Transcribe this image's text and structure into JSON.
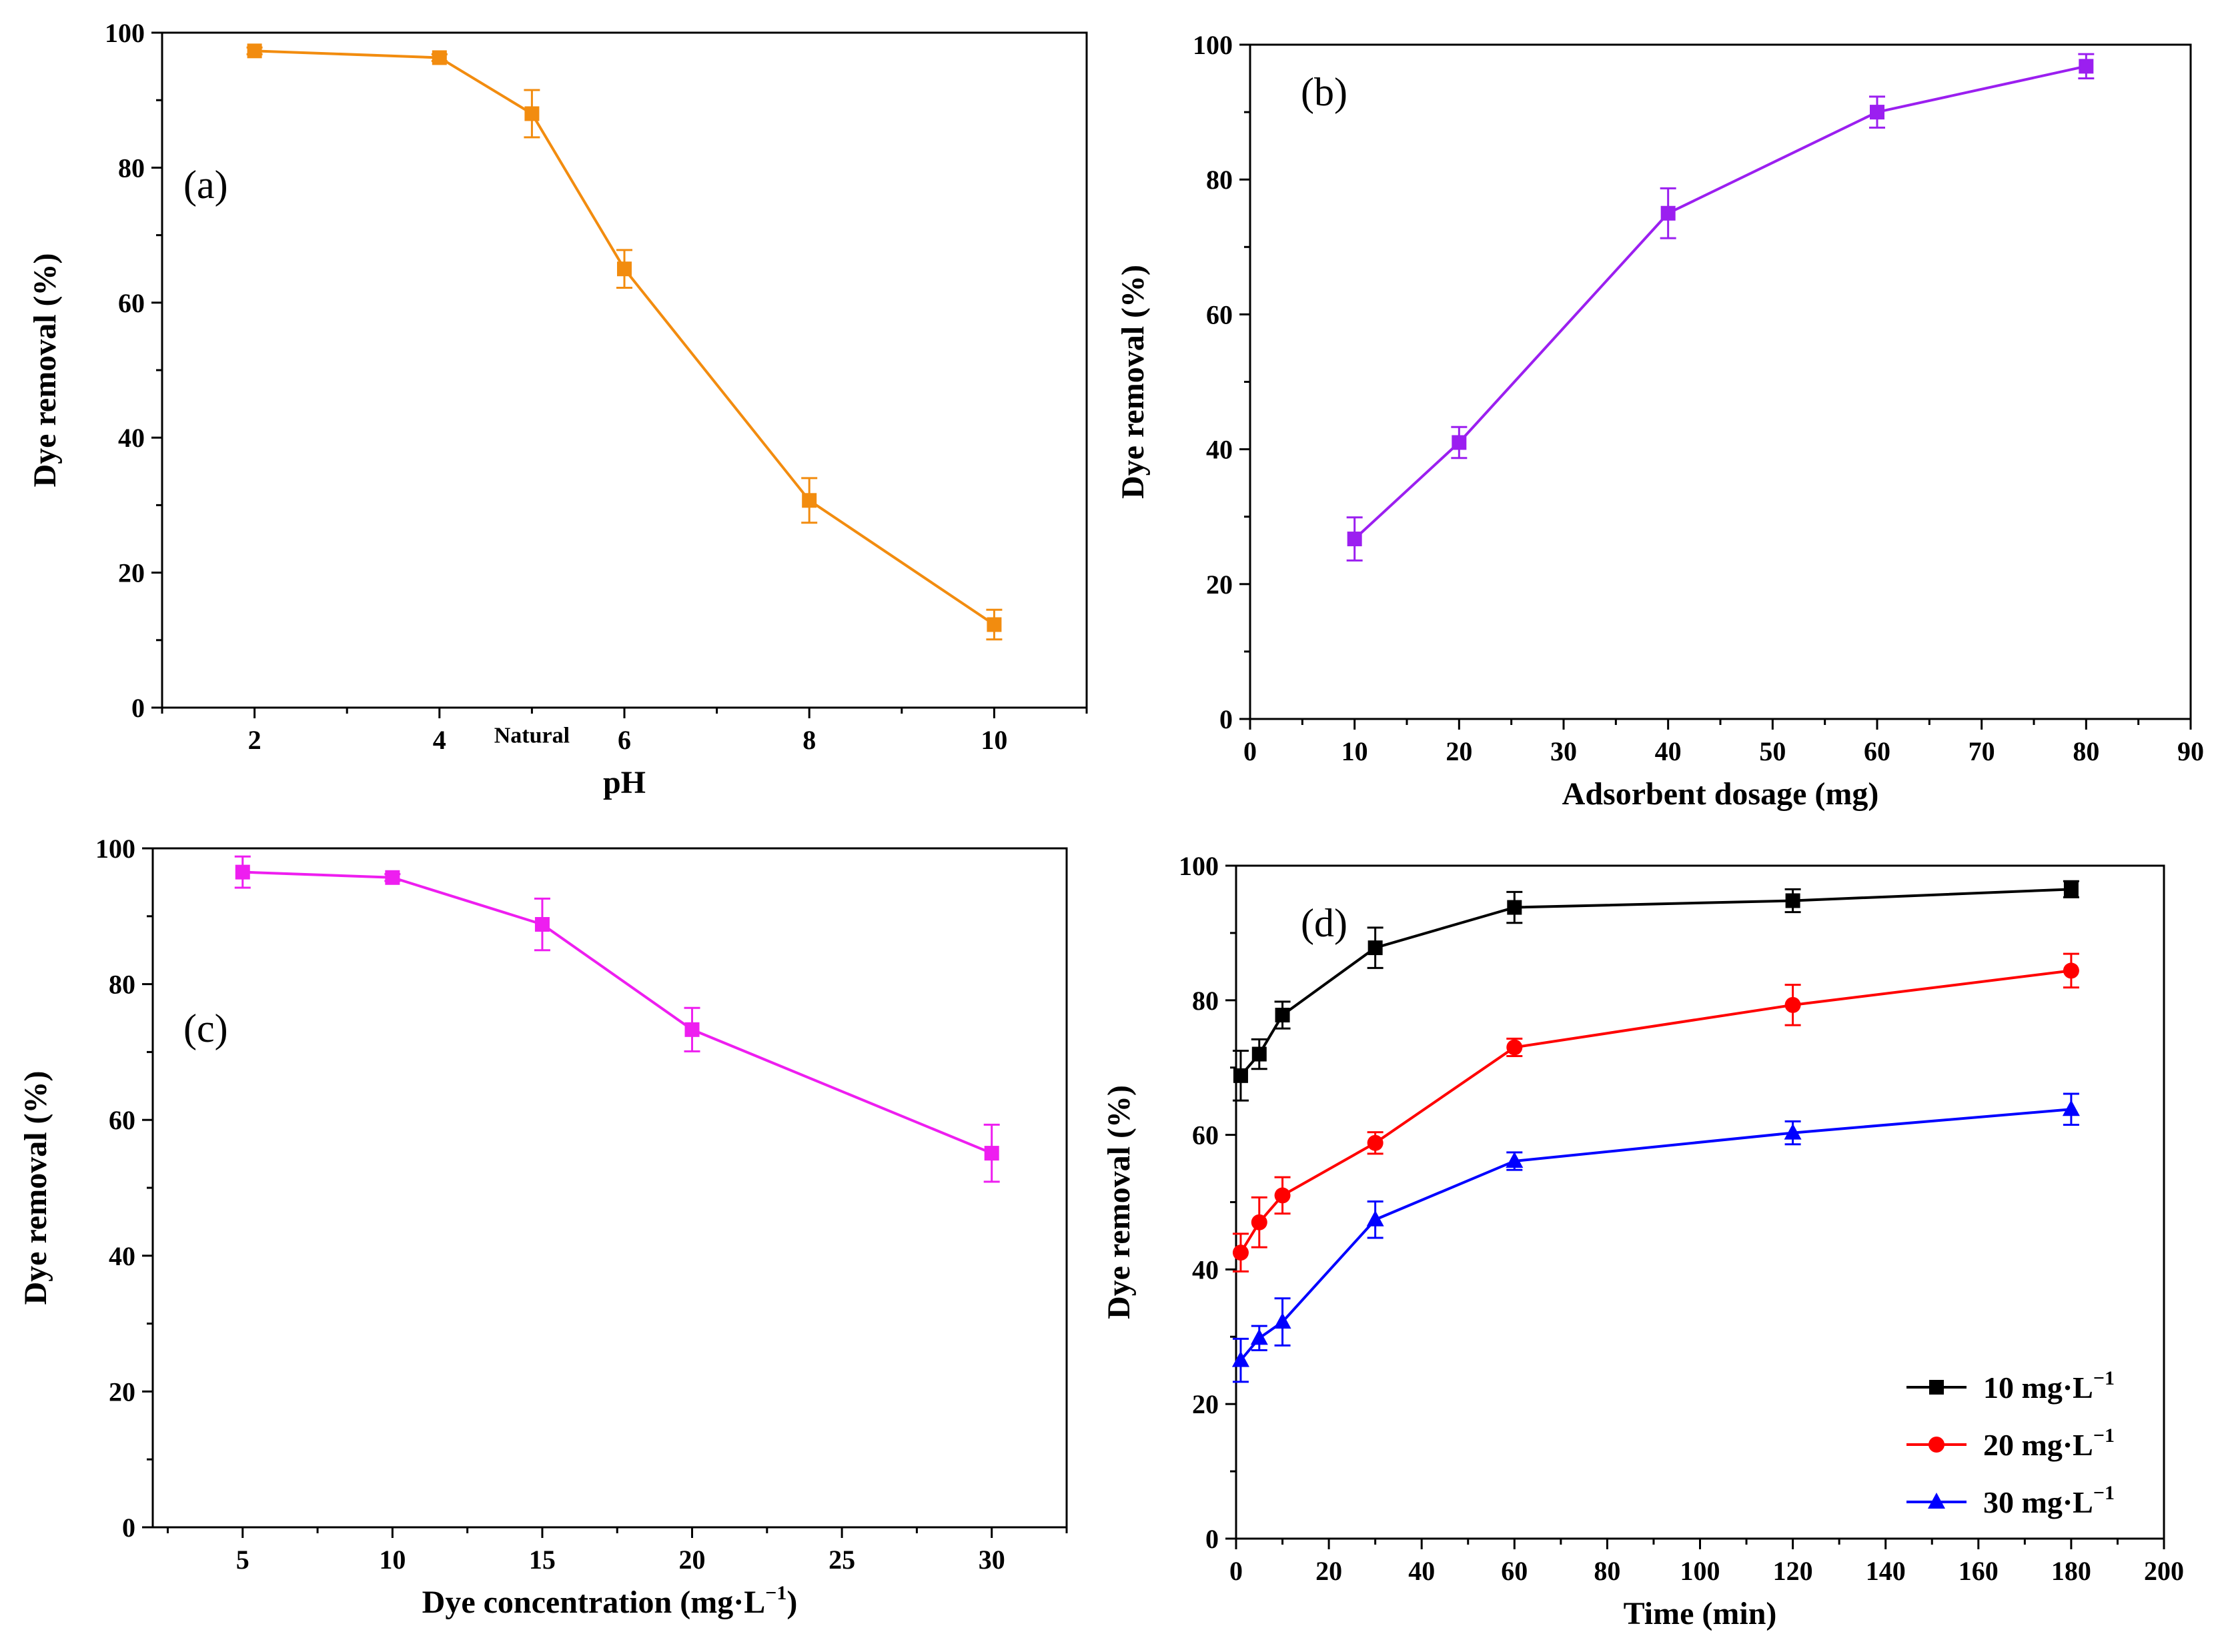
{
  "chart_data": [
    {
      "type": "line",
      "panel_label": "(a)",
      "xlabel": "pH",
      "ylabel": "Dye removal (%)",
      "xlim": [
        1,
        11
      ],
      "ylim": [
        0,
        100
      ],
      "xticks": [
        2,
        4,
        6,
        8,
        10
      ],
      "yticks": [
        0,
        20,
        40,
        60,
        80,
        100
      ],
      "annotations": [
        {
          "text": "Natural",
          "x": 5,
          "y": -4
        }
      ],
      "series": [
        {
          "color": "#f28c0f",
          "marker": "square",
          "x": [
            2,
            4,
            5,
            6,
            8,
            10
          ],
          "y": [
            97.3,
            96.3,
            88,
            65,
            30.7,
            12.3
          ],
          "err": [
            0.5,
            0.5,
            3.5,
            2.8,
            3.3,
            2.2
          ]
        }
      ]
    },
    {
      "type": "line",
      "panel_label": "(b)",
      "xlabel": "Adsorbent dosage (mg)",
      "ylabel": "Dye removal (%)",
      "xlim": [
        0,
        90
      ],
      "ylim": [
        0,
        100
      ],
      "xticks": [
        0,
        10,
        20,
        30,
        40,
        50,
        60,
        70,
        80,
        90
      ],
      "yticks": [
        0,
        20,
        40,
        60,
        80,
        100
      ],
      "series": [
        {
          "color": "#9b1ff0",
          "marker": "square",
          "x": [
            10,
            20,
            40,
            60,
            80
          ],
          "y": [
            26.7,
            41,
            75,
            90,
            96.8
          ],
          "err": [
            3.2,
            2.3,
            3.7,
            2.3,
            1.8
          ]
        }
      ]
    },
    {
      "type": "line",
      "panel_label": "(c)",
      "xlabel": "Dye concentration (mg·L",
      "xlabel_sup": "−1",
      "xlabel_end": ")",
      "ylabel": "Dye removal (%)",
      "xlim": [
        2,
        32.5
      ],
      "ylim": [
        0,
        100
      ],
      "xticks": [
        5,
        10,
        15,
        20,
        25,
        30
      ],
      "yticks": [
        0,
        20,
        40,
        60,
        80,
        100
      ],
      "series": [
        {
          "color": "#ee1ef0",
          "marker": "square",
          "x": [
            5,
            10,
            15,
            20,
            30
          ],
          "y": [
            96.5,
            95.7,
            88.8,
            73.3,
            55.1
          ],
          "err": [
            2.3,
            0.5,
            3.8,
            3.2,
            4.2
          ]
        }
      ]
    },
    {
      "type": "line",
      "panel_label": "(d)",
      "xlabel": "Time (min)",
      "ylabel": "Dye removal (%)",
      "xlim": [
        0,
        200
      ],
      "ylim": [
        0,
        100
      ],
      "xticks": [
        0,
        20,
        40,
        60,
        80,
        100,
        120,
        140,
        160,
        180,
        200
      ],
      "yticks": [
        0,
        20,
        40,
        60,
        80,
        100
      ],
      "legend_position": "bottom-right",
      "series": [
        {
          "name": "10 mg·L",
          "name_sup": "−1",
          "color": "#000000",
          "marker": "square",
          "x": [
            1,
            5,
            10,
            30,
            60,
            120,
            180
          ],
          "y": [
            68.8,
            72,
            77.8,
            87.8,
            93.8,
            94.8,
            96.5
          ],
          "err": [
            3.7,
            2.2,
            2,
            3,
            2.3,
            1.7,
            1.2
          ]
        },
        {
          "name": "20 mg·L",
          "name_sup": "−1",
          "color": "#ff0000",
          "marker": "circle",
          "x": [
            1,
            5,
            10,
            30,
            60,
            120,
            180
          ],
          "y": [
            42.5,
            47,
            51,
            58.8,
            73,
            79.3,
            84.4
          ],
          "err": [
            2.8,
            3.7,
            2.7,
            1.6,
            1.3,
            3,
            2.5
          ]
        },
        {
          "name": "30 mg·L",
          "name_sup": "−1",
          "color": "#0000ff",
          "marker": "triangle",
          "x": [
            1,
            5,
            10,
            30,
            60,
            120,
            180
          ],
          "y": [
            26.5,
            29.8,
            32.2,
            47.4,
            56.1,
            60.3,
            63.8
          ],
          "err": [
            3.2,
            1.8,
            3.5,
            2.7,
            1.3,
            1.7,
            2.3
          ]
        }
      ]
    }
  ]
}
